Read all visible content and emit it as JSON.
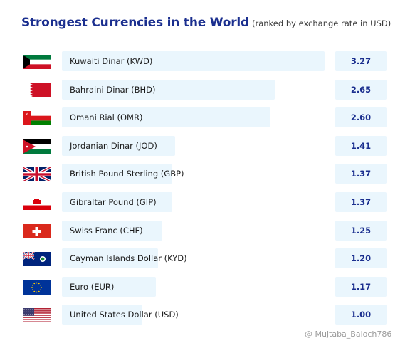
{
  "chart_data": {
    "type": "bar",
    "orientation": "horizontal",
    "title": "Strongest Currencies in the World",
    "subtitle": "(ranked by exchange rate in USD)",
    "categories": [
      "Kuwaiti Dinar (KWD)",
      "Bahraini Dinar (BHD)",
      "Omani Rial (OMR)",
      "Jordanian Dinar (JOD)",
      "British Pound Sterling (GBP)",
      "Gibraltar Pound (GIP)",
      "Swiss Franc (CHF)",
      "Cayman Islands Dollar (KYD)",
      "Euro (EUR)",
      "United States Dollar (USD)"
    ],
    "values": [
      3.27,
      2.65,
      2.6,
      1.41,
      1.37,
      1.37,
      1.25,
      1.2,
      1.17,
      1.0
    ],
    "value_labels": [
      "3.27",
      "2.65",
      "2.60",
      "1.41",
      "1.37",
      "1.37",
      "1.25",
      "1.20",
      "1.17",
      "1.00"
    ],
    "flag_icons": [
      "kuwait-flag-icon",
      "bahrain-flag-icon",
      "oman-flag-icon",
      "jordan-flag-icon",
      "united-kingdom-flag-icon",
      "gibraltar-flag-icon",
      "switzerland-flag-icon",
      "cayman-islands-flag-icon",
      "european-union-flag-icon",
      "united-states-flag-icon"
    ],
    "xlim": [
      0,
      3.27
    ],
    "grid": false,
    "colors": {
      "title": "#1b2f8f",
      "bar": "#eaf6fd",
      "value_text": "#1b2f8f"
    }
  },
  "watermark": "@ Mujtaba_Baloch786"
}
